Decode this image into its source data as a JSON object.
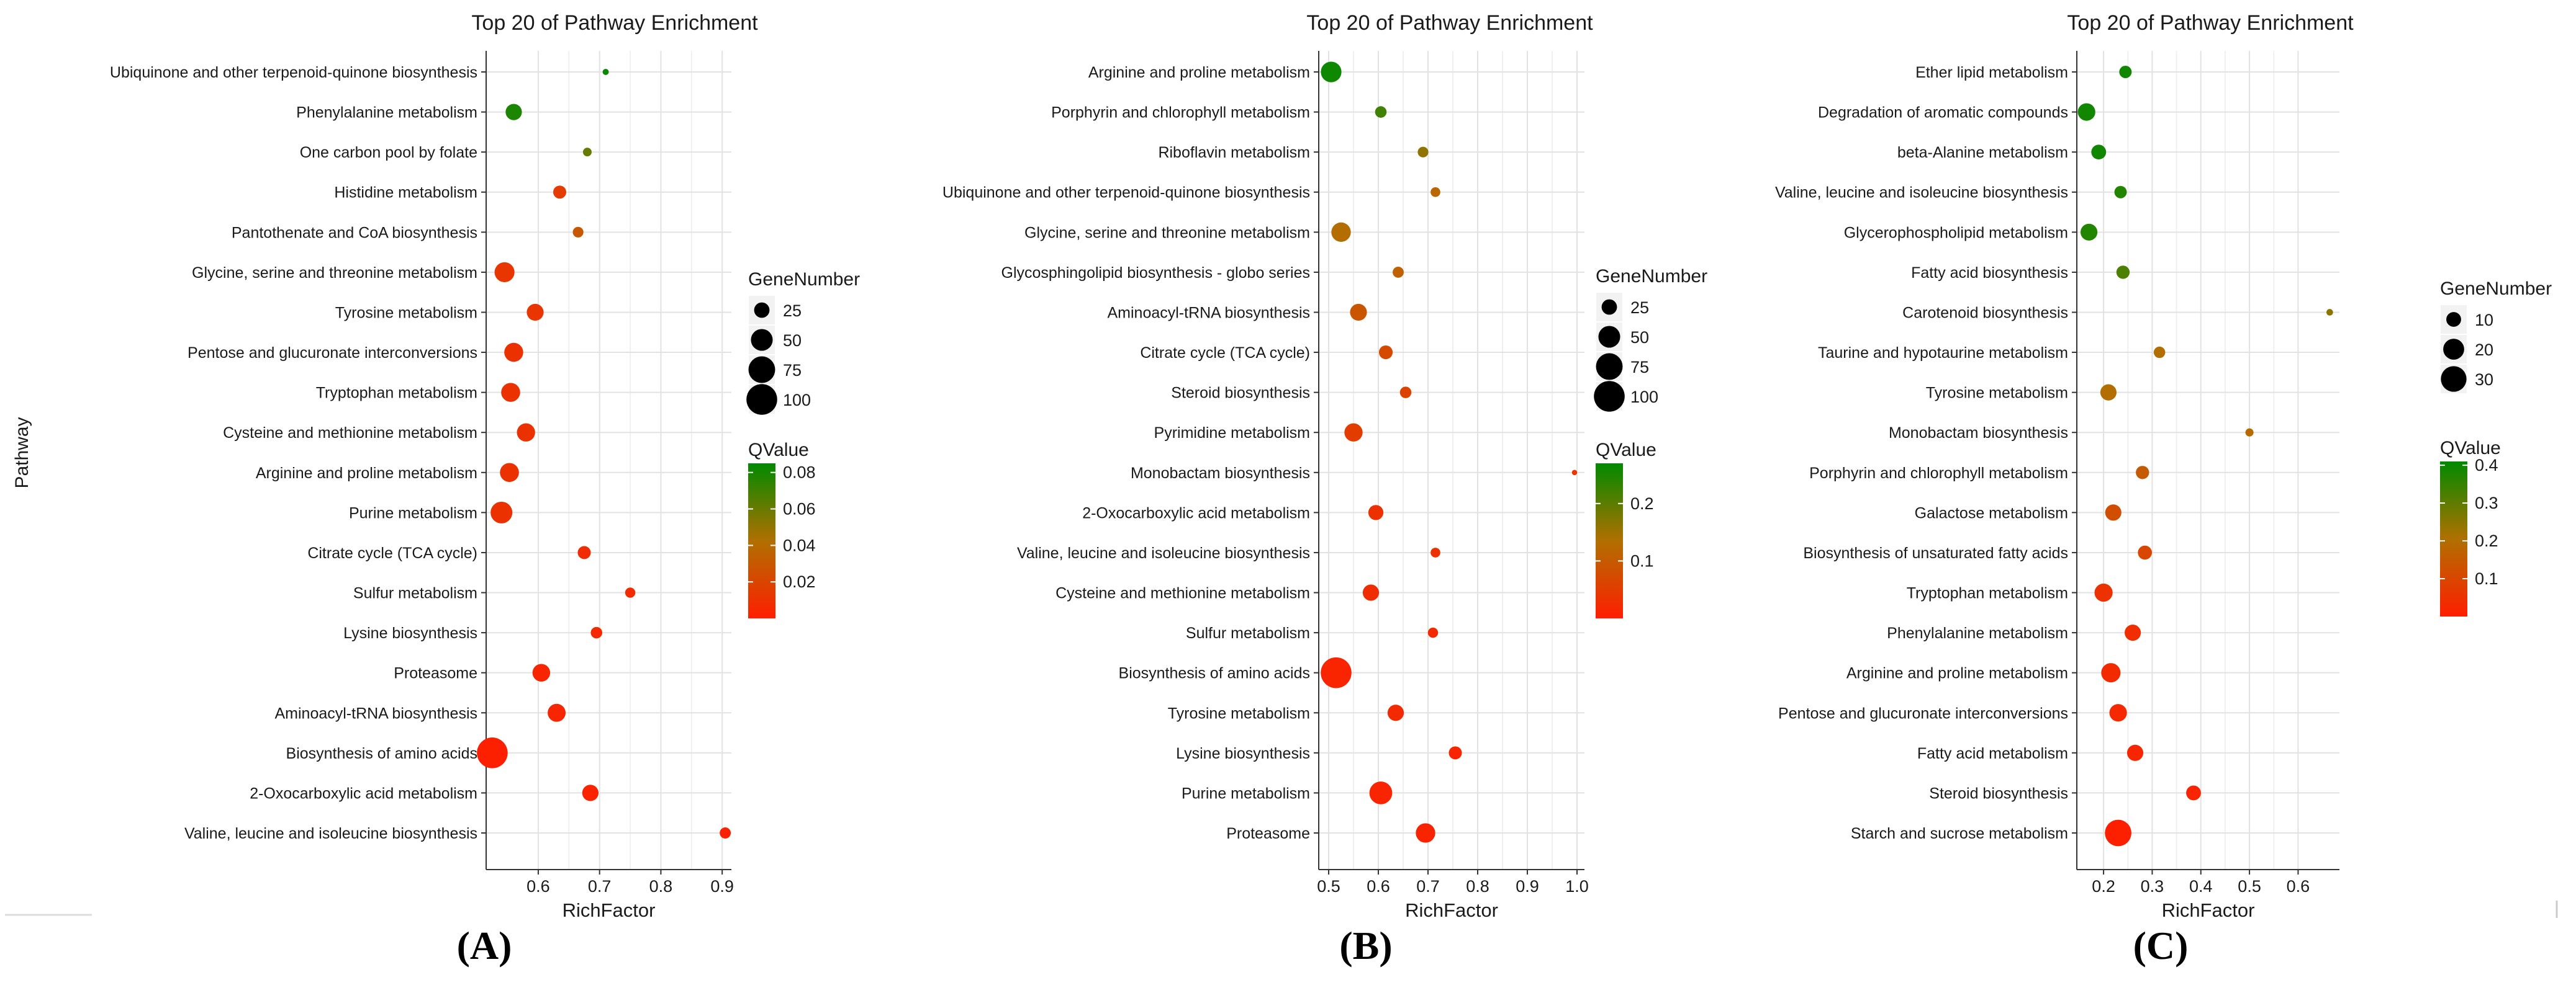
{
  "chart_data": [
    {
      "type": "scatter",
      "panel": "A",
      "title": "Top 20 of Pathway Enrichment",
      "xlabel": "RichFactor",
      "ylabel": "Pathway",
      "xlim": [
        0.515,
        0.915
      ],
      "xticks": [
        0.6,
        0.7,
        0.8,
        0.9
      ],
      "xtick_labels": [
        "0.6",
        "0.7",
        "0.8",
        "0.9"
      ],
      "size_legend": {
        "title": "GeneNumber",
        "values": [
          25,
          50,
          75,
          100
        ],
        "labels": [
          "25",
          "50",
          "75",
          "100"
        ],
        "max": 110
      },
      "color_legend": {
        "title": "QValue",
        "range": [
          0.0,
          0.085
        ],
        "ticks": [
          0.02,
          0.04,
          0.06,
          0.08
        ],
        "tick_labels": [
          "0.02",
          "0.04",
          "0.06",
          "0.08"
        ]
      },
      "pathways": [
        "Ubiquinone and other terpenoid-quinone biosynthesis",
        "Phenylalanine metabolism",
        "One carbon pool by folate",
        "Histidine metabolism",
        "Pantothenate and CoA biosynthesis",
        "Glycine, serine and threonine metabolism",
        "Tyrosine metabolism",
        "Pentose and glucuronate interconversions",
        "Tryptophan metabolism",
        "Cysteine and methionine metabolism",
        "Arginine and proline metabolism",
        "Purine metabolism",
        "Citrate cycle (TCA cycle)",
        "Sulfur metabolism",
        "Lysine biosynthesis",
        "Proteasome",
        "Aminoacyl-tRNA biosynthesis",
        "Biosynthesis of amino acids",
        "2-Oxocarboxylic acid metabolism",
        "Valine, leucine and isoleucine biosynthesis"
      ],
      "rich_factor": [
        0.71,
        0.56,
        0.68,
        0.635,
        0.665,
        0.545,
        0.595,
        0.56,
        0.555,
        0.58,
        0.553,
        0.54,
        0.675,
        0.75,
        0.695,
        0.605,
        0.63,
        0.525,
        0.685,
        0.905
      ],
      "gene_number": [
        4,
        28,
        8,
        18,
        12,
        42,
        30,
        38,
        38,
        35,
        38,
        50,
        18,
        11,
        14,
        33,
        34,
        100,
        28,
        13
      ],
      "q_value": [
        0.082,
        0.078,
        0.06,
        0.015,
        0.03,
        0.012,
        0.012,
        0.01,
        0.01,
        0.01,
        0.01,
        0.01,
        0.008,
        0.006,
        0.005,
        0.004,
        0.004,
        0.001,
        0.002,
        0.002
      ]
    },
    {
      "type": "scatter",
      "panel": "B",
      "title": "Top 20 of Pathway Enrichment",
      "xlabel": "RichFactor",
      "ylabel": "",
      "xlim": [
        0.48,
        1.015
      ],
      "xticks": [
        0.5,
        0.6,
        0.7,
        0.8,
        0.9,
        1.0
      ],
      "xtick_labels": [
        "0.5",
        "0.6",
        "0.7",
        "0.8",
        "0.9",
        "1.0"
      ],
      "size_legend": {
        "title": "GeneNumber",
        "values": [
          25,
          50,
          75,
          100
        ],
        "labels": [
          "25",
          "50",
          "75",
          "100"
        ],
        "max": 110
      },
      "color_legend": {
        "title": "QValue",
        "range": [
          0.0,
          0.27
        ],
        "ticks": [
          0.1,
          0.2
        ],
        "tick_labels": [
          "0.1",
          "0.2"
        ]
      },
      "pathways": [
        "Arginine and proline metabolism",
        "Porphyrin and chlorophyll metabolism",
        "Riboflavin metabolism",
        "Ubiquinone and other terpenoid-quinone biosynthesis",
        "Glycine, serine and threonine metabolism",
        "Glycosphingolipid biosynthesis - globo series",
        "Aminoacyl-tRNA biosynthesis",
        "Citrate cycle (TCA cycle)",
        "Steroid biosynthesis",
        "Pyrimidine metabolism",
        "Monobactam biosynthesis",
        "2-Oxocarboxylic acid metabolism",
        "Valine, leucine and isoleucine biosynthesis",
        "Cysteine and methionine metabolism",
        "Sulfur metabolism",
        "Biosynthesis of amino acids",
        "Tyrosine metabolism",
        "Lysine biosynthesis",
        "Purine metabolism",
        "Proteasome"
      ],
      "rich_factor": [
        0.505,
        0.605,
        0.69,
        0.715,
        0.525,
        0.64,
        0.56,
        0.615,
        0.655,
        0.55,
        0.995,
        0.595,
        0.715,
        0.585,
        0.71,
        0.515,
        0.635,
        0.755,
        0.605,
        0.695
      ],
      "gene_number": [
        45,
        14,
        12,
        10,
        40,
        13,
        30,
        20,
        14,
        35,
        3,
        24,
        10,
        28,
        11,
        100,
        28,
        18,
        55,
        40
      ],
      "q_value": [
        0.26,
        0.22,
        0.16,
        0.12,
        0.13,
        0.11,
        0.09,
        0.07,
        0.06,
        0.05,
        0.04,
        0.03,
        0.03,
        0.025,
        0.02,
        0.01,
        0.02,
        0.01,
        0.01,
        0.008
      ]
    },
    {
      "type": "scatter",
      "panel": "C",
      "title": "Top 20 of Pathway Enrichment",
      "xlabel": "RichFactor",
      "ylabel": "",
      "xlim": [
        0.145,
        0.685
      ],
      "xticks": [
        0.2,
        0.3,
        0.4,
        0.5,
        0.6
      ],
      "xtick_labels": [
        "0.2",
        "0.3",
        "0.4",
        "0.5",
        "0.6"
      ],
      "size_legend": {
        "title": "GeneNumber",
        "values": [
          10,
          20,
          30
        ],
        "labels": [
          "10",
          "20",
          "30"
        ],
        "max": 34
      },
      "color_legend": {
        "title": "QValue",
        "range": [
          0.0,
          0.41
        ],
        "ticks": [
          0.1,
          0.2,
          0.3,
          0.4
        ],
        "tick_labels": [
          "0.1",
          "0.2",
          "0.3",
          "0.4"
        ]
      },
      "pathways": [
        "Ether lipid metabolism",
        "Degradation of aromatic compounds",
        "beta-Alanine metabolism",
        "Valine, leucine and isoleucine biosynthesis",
        "Glycerophospholipid metabolism",
        "Fatty acid biosynthesis",
        "Carotenoid biosynthesis",
        "Taurine and hypotaurine metabolism",
        "Tyrosine metabolism",
        "Monobactam biosynthesis",
        "Porphyrin and chlorophyll metabolism",
        "Galactose metabolism",
        "Biosynthesis of unsaturated fatty acids",
        "Tryptophan metabolism",
        "Phenylalanine metabolism",
        "Arginine and proline metabolism",
        "Pentose and glucuronate interconversions",
        "Fatty acid metabolism",
        "Steroid biosynthesis",
        "Starch and sucrose metabolism"
      ],
      "rich_factor": [
        0.245,
        0.165,
        0.19,
        0.235,
        0.17,
        0.24,
        0.665,
        0.315,
        0.21,
        0.5,
        0.28,
        0.22,
        0.285,
        0.2,
        0.26,
        0.215,
        0.23,
        0.265,
        0.385,
        0.23
      ],
      "gene_number": [
        7,
        14,
        10,
        7,
        13,
        8,
        2,
        6,
        12,
        3,
        8,
        12,
        9,
        15,
        12,
        17,
        14,
        12,
        10,
        32
      ],
      "q_value": [
        0.39,
        0.39,
        0.39,
        0.37,
        0.37,
        0.32,
        0.25,
        0.2,
        0.2,
        0.19,
        0.15,
        0.12,
        0.1,
        0.05,
        0.04,
        0.03,
        0.025,
        0.02,
        0.015,
        0.005
      ]
    }
  ],
  "panel_labels": [
    "(A)",
    "(B)",
    "(C)"
  ]
}
